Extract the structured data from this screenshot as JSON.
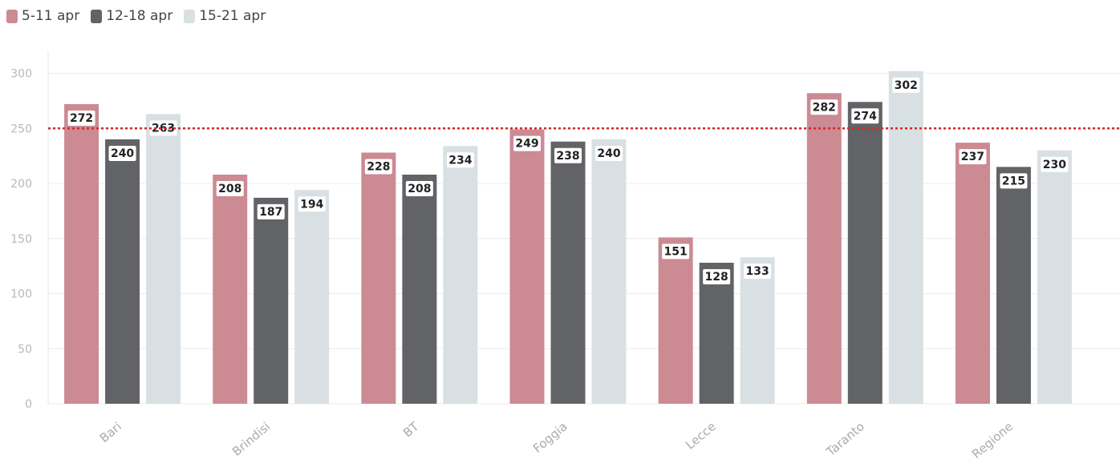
{
  "chart_data": {
    "type": "bar",
    "categories": [
      "Bari",
      "Brindisi",
      "BT",
      "Foggia",
      "Lecce",
      "Taranto",
      "Regione"
    ],
    "series": [
      {
        "name": "5-11 apr",
        "color": "#cc8a93",
        "values": [
          272,
          208,
          228,
          249,
          151,
          282,
          237
        ]
      },
      {
        "name": "12-18 apr",
        "color": "#626366",
        "values": [
          240,
          187,
          208,
          238,
          128,
          274,
          215
        ]
      },
      {
        "name": "15-21 apr",
        "color": "#d9e0e3",
        "values": [
          263,
          194,
          234,
          240,
          133,
          302,
          230
        ]
      }
    ],
    "yticks": [
      "0",
      "50",
      "100",
      "150",
      "200",
      "250",
      "300"
    ],
    "ylim": [
      0,
      320
    ],
    "reference_line": {
      "value": 250,
      "color": "#d42a2a",
      "style": "dotted"
    },
    "grid": true,
    "legend_position": "top-left",
    "title": "",
    "xlabel": "",
    "ylabel": ""
  }
}
